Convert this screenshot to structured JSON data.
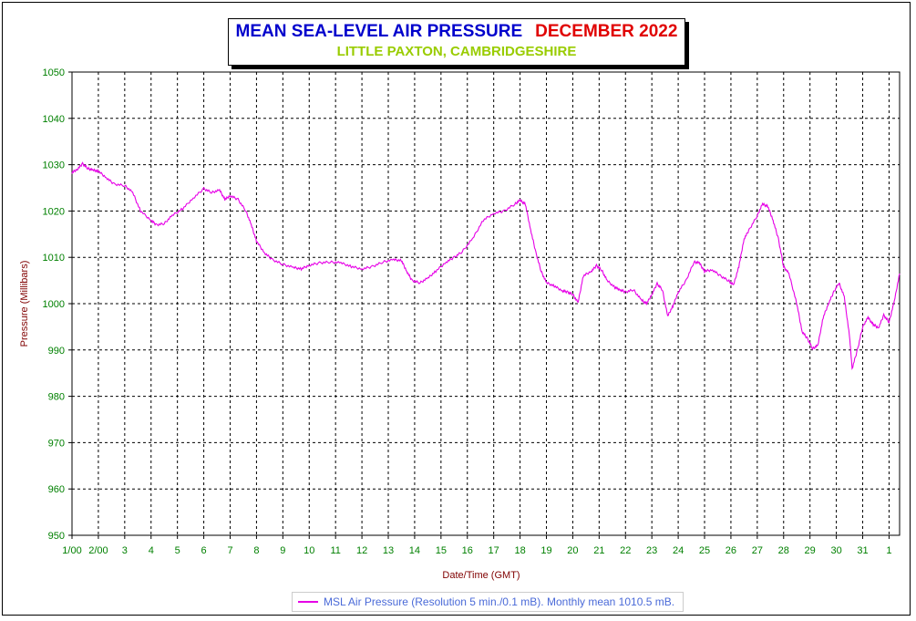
{
  "title": {
    "main": "MEAN SEA-LEVEL AIR PRESSURE",
    "month": "DECEMBER 2022",
    "subtitle": "LITTLE PAXTON, CAMBRIDGESHIRE"
  },
  "legend": {
    "label": "MSL Air Pressure (Resolution 5 min./0.1 mB). Monthly mean 1010.5 mB."
  },
  "colors": {
    "line": "#e600e6",
    "title_main": "#0000cc",
    "title_month": "#e00000",
    "subtitle": "#99cc00",
    "tick_labels": "#008000",
    "axis_labels": "#800000"
  },
  "chart_data": {
    "type": "line",
    "title": "MEAN SEA-LEVEL AIR PRESSURE DECEMBER 2022",
    "subtitle": "LITTLE PAXTON, CAMBRIDGESHIRE",
    "xlabel": "Date/Time (GMT)",
    "ylabel": "Pressure (Millibars)",
    "ylim": [
      950,
      1050
    ],
    "yticks": [
      950,
      960,
      970,
      980,
      990,
      1000,
      1010,
      1020,
      1030,
      1040,
      1050
    ],
    "xlim": [
      1,
      32.4
    ],
    "xticks": [
      {
        "x": 1,
        "label": "1/00"
      },
      {
        "x": 2,
        "label": "2/00"
      },
      {
        "x": 3,
        "label": "3"
      },
      {
        "x": 4,
        "label": "4"
      },
      {
        "x": 5,
        "label": "5"
      },
      {
        "x": 6,
        "label": "6"
      },
      {
        "x": 7,
        "label": "7"
      },
      {
        "x": 8,
        "label": "8"
      },
      {
        "x": 9,
        "label": "9"
      },
      {
        "x": 10,
        "label": "10"
      },
      {
        "x": 11,
        "label": "11"
      },
      {
        "x": 12,
        "label": "12"
      },
      {
        "x": 13,
        "label": "13"
      },
      {
        "x": 14,
        "label": "14"
      },
      {
        "x": 15,
        "label": "15"
      },
      {
        "x": 16,
        "label": "16"
      },
      {
        "x": 17,
        "label": "17"
      },
      {
        "x": 18,
        "label": "18"
      },
      {
        "x": 19,
        "label": "19"
      },
      {
        "x": 20,
        "label": "20"
      },
      {
        "x": 21,
        "label": "21"
      },
      {
        "x": 22,
        "label": "22"
      },
      {
        "x": 23,
        "label": "23"
      },
      {
        "x": 24,
        "label": "24"
      },
      {
        "x": 25,
        "label": "25"
      },
      {
        "x": 26,
        "label": "26"
      },
      {
        "x": 27,
        "label": "27"
      },
      {
        "x": 28,
        "label": "28"
      },
      {
        "x": 29,
        "label": "29"
      },
      {
        "x": 30,
        "label": "30"
      },
      {
        "x": 31,
        "label": "31"
      },
      {
        "x": 32,
        "label": "1"
      }
    ],
    "grid": true,
    "legend_position": "bottom-center",
    "series": [
      {
        "name": "MSL Air Pressure (Resolution 5 min./0.1 mB). Monthly mean 1010.5 mB.",
        "points": [
          [
            1.0,
            1028.3
          ],
          [
            1.2,
            1029.0
          ],
          [
            1.4,
            1030.2
          ],
          [
            1.6,
            1029.2
          ],
          [
            1.8,
            1028.8
          ],
          [
            2.0,
            1028.6
          ],
          [
            2.3,
            1027.2
          ],
          [
            2.6,
            1025.8
          ],
          [
            3.0,
            1025.5
          ],
          [
            3.3,
            1024.0
          ],
          [
            3.6,
            1020.0
          ],
          [
            4.0,
            1018.0
          ],
          [
            4.2,
            1017.0
          ],
          [
            4.5,
            1017.3
          ],
          [
            4.8,
            1019.0
          ],
          [
            5.2,
            1020.5
          ],
          [
            5.6,
            1022.8
          ],
          [
            6.0,
            1024.8
          ],
          [
            6.3,
            1024.0
          ],
          [
            6.6,
            1024.5
          ],
          [
            6.8,
            1022.5
          ],
          [
            7.0,
            1023.3
          ],
          [
            7.3,
            1022.5
          ],
          [
            7.6,
            1020.0
          ],
          [
            7.8,
            1017.0
          ],
          [
            8.0,
            1013.5
          ],
          [
            8.3,
            1011.0
          ],
          [
            8.6,
            1009.5
          ],
          [
            9.0,
            1008.5
          ],
          [
            9.4,
            1007.8
          ],
          [
            9.7,
            1007.5
          ],
          [
            10.0,
            1008.3
          ],
          [
            10.4,
            1008.8
          ],
          [
            10.8,
            1009.0
          ],
          [
            11.2,
            1008.8
          ],
          [
            11.6,
            1008.0
          ],
          [
            12.0,
            1007.5
          ],
          [
            12.4,
            1008.0
          ],
          [
            12.8,
            1009.0
          ],
          [
            13.2,
            1009.5
          ],
          [
            13.5,
            1009.3
          ],
          [
            13.7,
            1007.0
          ],
          [
            13.9,
            1005.0
          ],
          [
            14.2,
            1004.5
          ],
          [
            14.5,
            1005.5
          ],
          [
            14.8,
            1007.0
          ],
          [
            15.2,
            1009.0
          ],
          [
            15.5,
            1010.0
          ],
          [
            15.8,
            1011.2
          ],
          [
            16.2,
            1014.0
          ],
          [
            16.6,
            1018.0
          ],
          [
            17.0,
            1019.5
          ],
          [
            17.4,
            1020.0
          ],
          [
            17.8,
            1021.5
          ],
          [
            18.0,
            1022.3
          ],
          [
            18.2,
            1021.5
          ],
          [
            18.4,
            1016.0
          ],
          [
            18.6,
            1011.0
          ],
          [
            18.8,
            1007.0
          ],
          [
            19.0,
            1004.5
          ],
          [
            19.3,
            1003.8
          ],
          [
            19.6,
            1002.8
          ],
          [
            19.8,
            1002.5
          ],
          [
            20.0,
            1002.0
          ],
          [
            20.2,
            1000.2
          ],
          [
            20.4,
            1006.0
          ],
          [
            20.7,
            1007.0
          ],
          [
            20.9,
            1008.2
          ],
          [
            21.1,
            1007.2
          ],
          [
            21.3,
            1005.0
          ],
          [
            21.6,
            1003.5
          ],
          [
            21.8,
            1003.0
          ],
          [
            22.0,
            1002.5
          ],
          [
            22.3,
            1003.0
          ],
          [
            22.6,
            1000.8
          ],
          [
            22.8,
            1000.0
          ],
          [
            23.0,
            1002.0
          ],
          [
            23.2,
            1004.3
          ],
          [
            23.4,
            1003.0
          ],
          [
            23.6,
            997.3
          ],
          [
            23.8,
            999.5
          ],
          [
            24.0,
            1002.5
          ],
          [
            24.3,
            1005.0
          ],
          [
            24.6,
            1009.0
          ],
          [
            24.8,
            1008.8
          ],
          [
            25.0,
            1007.0
          ],
          [
            25.3,
            1007.3
          ],
          [
            25.6,
            1006.0
          ],
          [
            25.9,
            1005.0
          ],
          [
            26.1,
            1004.0
          ],
          [
            26.3,
            1008.0
          ],
          [
            26.5,
            1014.0
          ],
          [
            26.7,
            1016.0
          ],
          [
            27.0,
            1019.0
          ],
          [
            27.2,
            1021.5
          ],
          [
            27.4,
            1021.0
          ],
          [
            27.6,
            1018.0
          ],
          [
            27.8,
            1014.0
          ],
          [
            28.0,
            1008.0
          ],
          [
            28.2,
            1006.5
          ],
          [
            28.5,
            1000.0
          ],
          [
            28.7,
            994.0
          ],
          [
            28.9,
            992.5
          ],
          [
            29.1,
            990.3
          ],
          [
            29.3,
            991.0
          ],
          [
            29.5,
            997.0
          ],
          [
            29.7,
            1000.0
          ],
          [
            29.9,
            1002.5
          ],
          [
            30.1,
            1004.5
          ],
          [
            30.3,
            1001.5
          ],
          [
            30.5,
            993.0
          ],
          [
            30.6,
            986.0
          ],
          [
            30.8,
            990.0
          ],
          [
            31.0,
            995.0
          ],
          [
            31.2,
            997.0
          ],
          [
            31.4,
            995.5
          ],
          [
            31.6,
            994.8
          ],
          [
            31.8,
            997.5
          ],
          [
            32.0,
            996.0
          ],
          [
            32.2,
            1000.5
          ],
          [
            32.4,
            1006.5
          ]
        ]
      }
    ]
  }
}
